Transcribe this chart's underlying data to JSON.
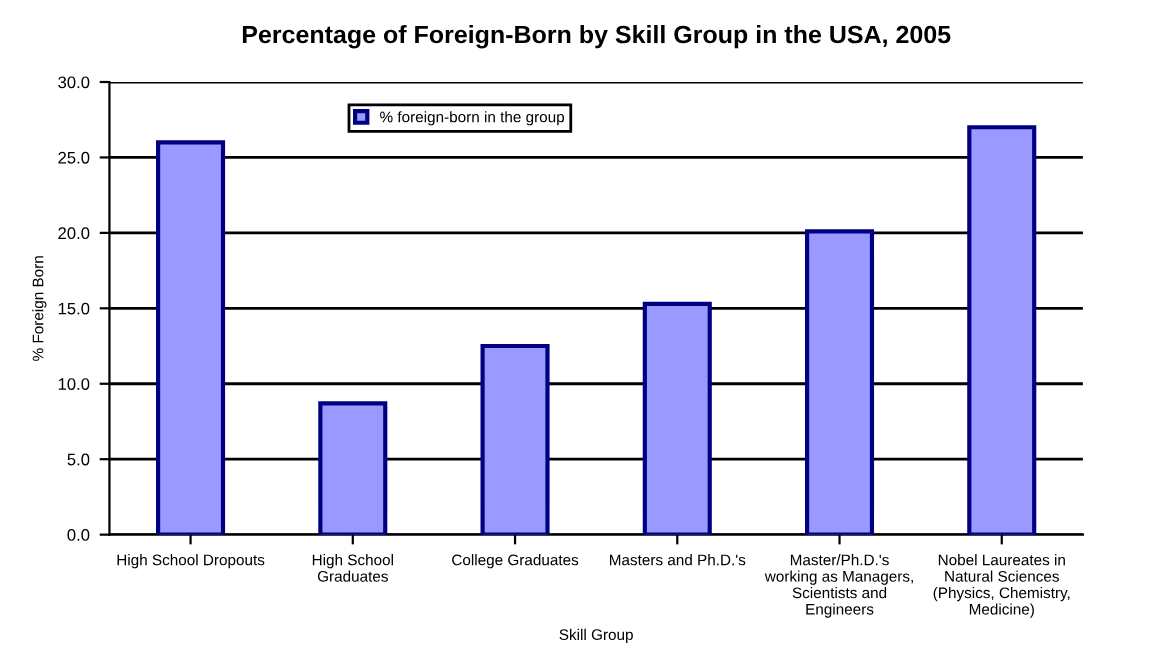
{
  "chart_data": {
    "type": "bar",
    "title": "Percentage of Foreign-Born by Skill Group in the USA, 2005",
    "xlabel": "Skill Group",
    "ylabel": "% Foreign Born",
    "categories": [
      "High School Dropouts",
      "High School\nGraduates",
      "College Graduates",
      "Masters and Ph.D.'s",
      "Master/Ph.D.'s\nworking as Managers,\nScientists and\nEngineers",
      "Nobel Laureates in\nNatural Sciences\n(Physics, Chemistry,\nMedicine)"
    ],
    "series": [
      {
        "name": "% foreign-born in the group",
        "color": "#9999ff",
        "values": [
          26.0,
          8.7,
          12.5,
          15.3,
          20.1,
          27.0
        ]
      }
    ],
    "ylim": [
      0,
      30
    ],
    "yticks": [
      {
        "value": 0,
        "label": "0.0"
      },
      {
        "value": 5,
        "label": "5.0"
      },
      {
        "value": 10,
        "label": "10.0"
      },
      {
        "value": 15,
        "label": "15.0"
      },
      {
        "value": 20,
        "label": "20.0"
      },
      {
        "value": 25,
        "label": "25.0"
      },
      {
        "value": 30,
        "label": "30.0"
      }
    ],
    "grid": "y",
    "legend": "top"
  }
}
